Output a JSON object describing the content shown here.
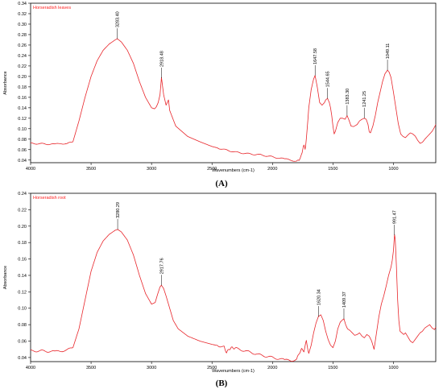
{
  "figure": {
    "panels": [
      {
        "panel_label": "(A)",
        "series_title": "Horseradish leaves"
      },
      {
        "panel_label": "(B)",
        "series_title": "Horseradish root"
      }
    ]
  },
  "colors": {
    "spectrum": "#e8252a",
    "title": "#ff2020",
    "axis": "#000000"
  },
  "chart_data": [
    {
      "type": "line",
      "title": "Horseradish leaves",
      "xlabel": "Wavenumbers (cm-1)",
      "ylabel": "Absorbance",
      "xlim": [
        4000,
        650
      ],
      "ylim": [
        0.035,
        0.34
      ],
      "x_reversed": true,
      "xticks": [
        4000,
        3500,
        3000,
        2500,
        2000,
        1500,
        1000
      ],
      "yticks": [
        0.04,
        0.06,
        0.08,
        0.1,
        0.12,
        0.14,
        0.16,
        0.18,
        0.2,
        0.22,
        0.24,
        0.26,
        0.28,
        0.3,
        0.32,
        0.34
      ],
      "ytick_labels": [
        "0.04",
        "0.06",
        "0.08",
        "0.10",
        "0.12",
        "0.14",
        "0.16",
        "0.18",
        "0.20",
        "0.22",
        "0.24",
        "0.26",
        "0.28",
        "0.30",
        "0.32",
        "0.34"
      ],
      "grid": false,
      "series": [
        {
          "x": [
            4000,
            3900,
            3800,
            3750,
            3700,
            3650,
            3600,
            3550,
            3500,
            3450,
            3400,
            3350,
            3300,
            3283,
            3250,
            3200,
            3150,
            3100,
            3050,
            3000,
            2975,
            2960,
            2945,
            2930,
            2918,
            2900,
            2880,
            2870,
            2860,
            2850,
            2800,
            2700,
            2600,
            2500,
            2400,
            2300,
            2200,
            2100,
            2000,
            1900,
            1850,
            1800,
            1780,
            1760,
            1750,
            1740,
            1730,
            1720,
            1700,
            1680,
            1660,
            1648,
            1630,
            1610,
            1590,
            1570,
            1560,
            1545,
            1530,
            1520,
            1510,
            1500,
            1490,
            1480,
            1460,
            1440,
            1420,
            1400,
            1383,
            1370,
            1350,
            1330,
            1300,
            1280,
            1260,
            1241,
            1225,
            1210,
            1200,
            1190,
            1170,
            1150,
            1130,
            1110,
            1090,
            1070,
            1049,
            1035,
            1020,
            1000,
            980,
            960,
            940,
            920,
            900,
            880,
            860,
            840,
            820,
            800,
            780,
            760,
            740,
            720,
            700,
            680,
            660,
            650
          ],
          "y": [
            0.072,
            0.071,
            0.07,
            0.072,
            0.071,
            0.075,
            0.115,
            0.16,
            0.2,
            0.23,
            0.25,
            0.262,
            0.27,
            0.272,
            0.266,
            0.25,
            0.225,
            0.19,
            0.16,
            0.14,
            0.138,
            0.142,
            0.15,
            0.165,
            0.198,
            0.165,
            0.145,
            0.15,
            0.155,
            0.135,
            0.105,
            0.085,
            0.075,
            0.066,
            0.06,
            0.055,
            0.052,
            0.05,
            0.046,
            0.042,
            0.04,
            0.038,
            0.04,
            0.05,
            0.06,
            0.07,
            0.06,
            0.08,
            0.14,
            0.175,
            0.195,
            0.202,
            0.18,
            0.15,
            0.145,
            0.15,
            0.155,
            0.158,
            0.15,
            0.14,
            0.125,
            0.105,
            0.09,
            0.095,
            0.112,
            0.12,
            0.12,
            0.118,
            0.125,
            0.118,
            0.105,
            0.104,
            0.108,
            0.115,
            0.118,
            0.12,
            0.118,
            0.108,
            0.094,
            0.092,
            0.105,
            0.125,
            0.15,
            0.17,
            0.19,
            0.205,
            0.212,
            0.208,
            0.198,
            0.17,
            0.14,
            0.11,
            0.09,
            0.085,
            0.083,
            0.088,
            0.092,
            0.09,
            0.086,
            0.078,
            0.072,
            0.074,
            0.08,
            0.085,
            0.09,
            0.095,
            0.103,
            0.108
          ]
        }
      ],
      "annotations": [
        {
          "x": 3283.4,
          "text": "3283.40"
        },
        {
          "x": 2918.48,
          "text": "2918.48"
        },
        {
          "x": 1647.58,
          "text": "1647.58"
        },
        {
          "x": 1544.65,
          "text": "1544.65"
        },
        {
          "x": 1383.3,
          "text": "1383.30"
        },
        {
          "x": 1241.25,
          "text": "1241.25"
        },
        {
          "x": 1049.11,
          "text": "1049.11"
        }
      ]
    },
    {
      "type": "line",
      "title": "Horseradish root",
      "xlabel": "Wavenumbers (cm-1)",
      "ylabel": "Absorbance",
      "xlim": [
        4000,
        650
      ],
      "ylim": [
        0.035,
        0.24
      ],
      "x_reversed": true,
      "xticks": [
        4000,
        3500,
        3000,
        2500,
        2000,
        1500,
        1000
      ],
      "yticks": [
        0.04,
        0.06,
        0.08,
        0.1,
        0.12,
        0.14,
        0.16,
        0.18,
        0.2,
        0.22,
        0.24
      ],
      "ytick_labels": [
        "0.04",
        "0.06",
        "0.08",
        "0.10",
        "0.12",
        "0.14",
        "0.16",
        "0.18",
        "0.20",
        "0.22",
        "0.24"
      ],
      "grid": false,
      "series": [
        {
          "x": [
            4000,
            3900,
            3800,
            3750,
            3700,
            3650,
            3600,
            3550,
            3500,
            3450,
            3400,
            3350,
            3300,
            3280,
            3250,
            3200,
            3150,
            3100,
            3050,
            3000,
            2970,
            2950,
            2930,
            2918,
            2900,
            2880,
            2850,
            2820,
            2780,
            2700,
            2600,
            2500,
            2400,
            2380,
            2360,
            2340,
            2300,
            2200,
            2100,
            2000,
            1900,
            1850,
            1800,
            1780,
            1760,
            1740,
            1720,
            1700,
            1680,
            1660,
            1640,
            1620,
            1600,
            1580,
            1560,
            1540,
            1520,
            1500,
            1480,
            1460,
            1440,
            1420,
            1409,
            1395,
            1380,
            1360,
            1340,
            1320,
            1300,
            1280,
            1260,
            1240,
            1220,
            1200,
            1180,
            1160,
            1140,
            1120,
            1100,
            1080,
            1060,
            1040,
            1020,
            1010,
            1000,
            991,
            985,
            975,
            965,
            955,
            945,
            930,
            915,
            900,
            880,
            860,
            840,
            820,
            800,
            780,
            760,
            740,
            720,
            700,
            680,
            660,
            650
          ],
          "y": [
            0.048,
            0.048,
            0.047,
            0.048,
            0.049,
            0.052,
            0.075,
            0.11,
            0.145,
            0.168,
            0.182,
            0.19,
            0.195,
            0.196,
            0.193,
            0.183,
            0.165,
            0.14,
            0.118,
            0.105,
            0.107,
            0.117,
            0.126,
            0.128,
            0.124,
            0.115,
            0.1,
            0.085,
            0.075,
            0.066,
            0.06,
            0.056,
            0.053,
            0.046,
            0.05,
            0.052,
            0.051,
            0.047,
            0.043,
            0.04,
            0.037,
            0.036,
            0.038,
            0.045,
            0.05,
            0.048,
            0.06,
            0.045,
            0.055,
            0.07,
            0.082,
            0.09,
            0.092,
            0.085,
            0.072,
            0.062,
            0.055,
            0.052,
            0.06,
            0.075,
            0.083,
            0.086,
            0.087,
            0.08,
            0.075,
            0.073,
            0.07,
            0.067,
            0.068,
            0.07,
            0.066,
            0.064,
            0.068,
            0.066,
            0.06,
            0.05,
            0.07,
            0.09,
            0.105,
            0.115,
            0.127,
            0.14,
            0.15,
            0.158,
            0.17,
            0.19,
            0.184,
            0.15,
            0.11,
            0.085,
            0.072,
            0.07,
            0.068,
            0.07,
            0.065,
            0.06,
            0.058,
            0.062,
            0.066,
            0.07,
            0.072,
            0.076,
            0.078,
            0.08,
            0.076,
            0.074,
            0.077
          ]
        }
      ],
      "annotations": [
        {
          "x": 3280.29,
          "text": "3280.29"
        },
        {
          "x": 2917.76,
          "text": "2917.76"
        },
        {
          "x": 1620.34,
          "text": "1620.34"
        },
        {
          "x": 1409.37,
          "text": "1409.37"
        },
        {
          "x": 991.47,
          "text": "991.47"
        }
      ]
    }
  ]
}
